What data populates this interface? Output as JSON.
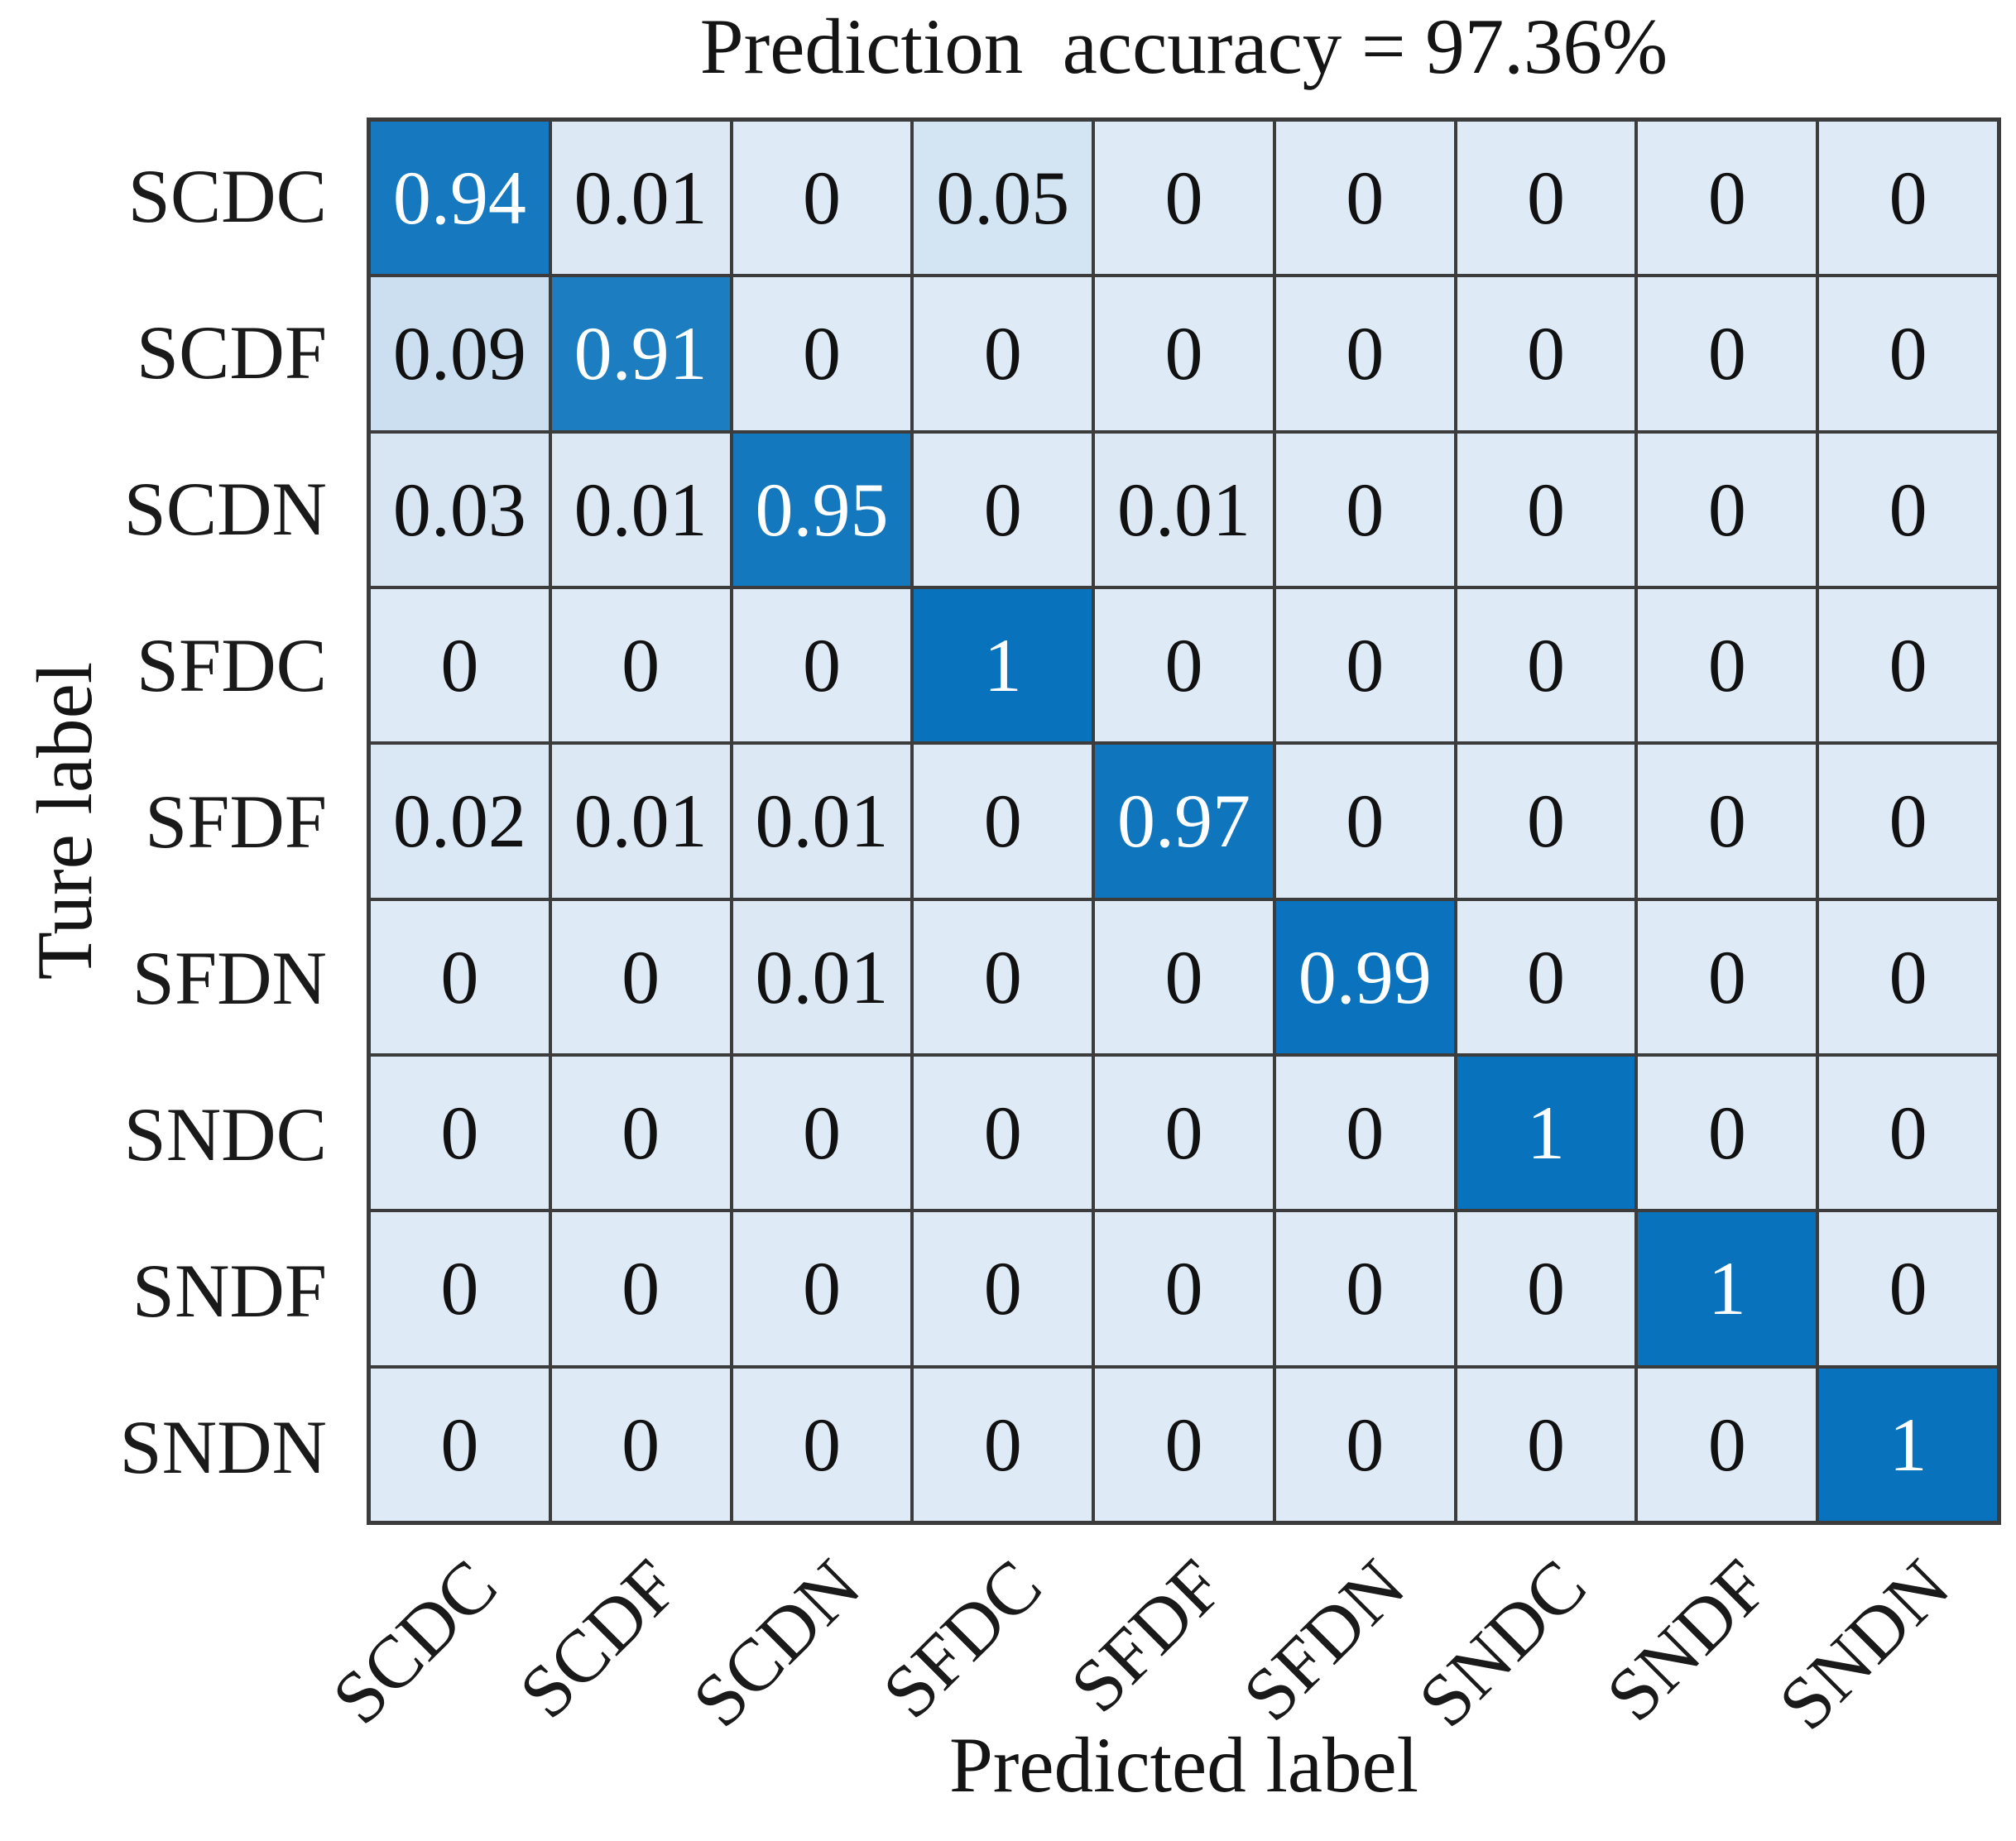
{
  "figure": {
    "title": "Prediction  accuracy = 97.36%",
    "x_axis_label": "Predicted label",
    "y_axis_label": "Ture label",
    "accuracy_percent": "97.36"
  },
  "chart_data": {
    "type": "heatmap",
    "title": "Prediction  accuracy = 97.36%",
    "xlabel": "Predicted label",
    "ylabel": "Ture label",
    "legend_position": "none",
    "grid": "on",
    "row_labels": [
      "SCDC",
      "SCDF",
      "SCDN",
      "SFDC",
      "SFDF",
      "SFDN",
      "SNDC",
      "SNDF",
      "SNDN"
    ],
    "col_labels": [
      "SCDC",
      "SCDF",
      "SCDN",
      "SFDC",
      "SFDF",
      "SFDN",
      "SNDC",
      "SNDF",
      "SNDN"
    ],
    "value_range": [
      0,
      1
    ],
    "matrix": [
      [
        0.94,
        0.01,
        0,
        0.05,
        0,
        0,
        0,
        0,
        0
      ],
      [
        0.09,
        0.91,
        0,
        0,
        0,
        0,
        0,
        0,
        0
      ],
      [
        0.03,
        0.01,
        0.95,
        0,
        0.01,
        0,
        0,
        0,
        0
      ],
      [
        0,
        0,
        0,
        1,
        0,
        0,
        0,
        0,
        0
      ],
      [
        0.02,
        0.01,
        0.01,
        0,
        0.97,
        0,
        0,
        0,
        0
      ],
      [
        0,
        0,
        0.01,
        0,
        0,
        0.99,
        0,
        0,
        0
      ],
      [
        0,
        0,
        0,
        0,
        0,
        0,
        1,
        0,
        0
      ],
      [
        0,
        0,
        0,
        0,
        0,
        0,
        0,
        1,
        0
      ],
      [
        0,
        0,
        0,
        0,
        0,
        0,
        0,
        0,
        1
      ]
    ],
    "colors": {
      "colormap_low": "#deeaf6",
      "colormap_high": "#0972bc",
      "grid_line": "#3c3c3c",
      "value_text_on_light": "#111111",
      "value_text_on_dark": "#ffffff",
      "label_text": "#1a1a1a"
    }
  }
}
